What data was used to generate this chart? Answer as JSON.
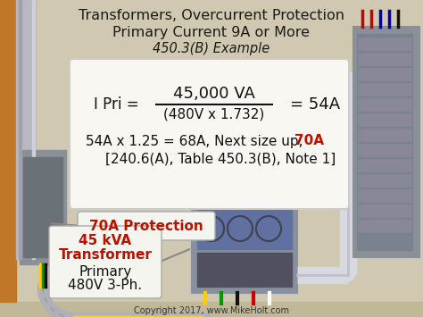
{
  "bg_color": "#d0c8b0",
  "title_line1": "Transformers, Overcurrent Protection",
  "title_line2": "Primary Current 9A or More",
  "title_line3": "450.3(B) Example",
  "title_color": "#1a1a1a",
  "title_fontsize": 11.5,
  "formula_box_color": "#f8f7f2",
  "formula_box_edge": "#cccccc",
  "protection_text": "70A Protection",
  "protection_color": "#bb1100",
  "protection_fontsize": 11,
  "transformer_line1": "45 kVA",
  "transformer_line2": "Transformer",
  "transformer_line3": "Primary",
  "transformer_line4": "480V 3-Ph.",
  "transformer_color_red": "#bb1100",
  "transformer_color_black": "#111111",
  "transformer_fontsize": 10,
  "copyright_text": "Copyright 2017, www.MikeHolt.com",
  "copyright_color": "#333333",
  "copyright_fontsize": 7,
  "wall_left_color": "#c07828",
  "bg_darker": "#c0b898",
  "panel_gray": "#8a9098",
  "panel_inner": "#6a7278",
  "conduit_gray": "#b8b8c0",
  "conduit_light": "#d8d8e0",
  "transformer_body": "#7a7a8a"
}
